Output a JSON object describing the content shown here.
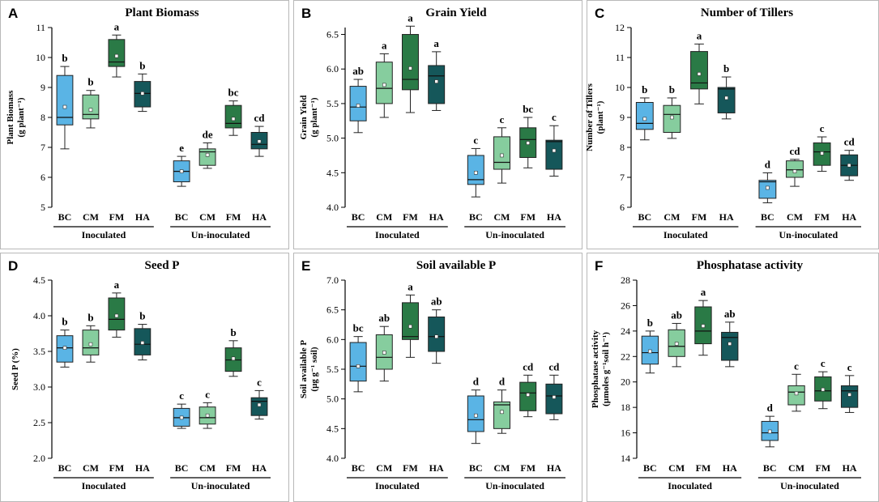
{
  "figure": {
    "colors": {
      "BC": "#5ab4e5",
      "CM": "#86cd9e",
      "FM": "#2a7a46",
      "HA": "#15575a",
      "mean_marker": "#ffffff",
      "border": "#b8b8b8"
    }
  },
  "chart_data": [
    {
      "type": "box",
      "letter": "A",
      "title": "Plant Biomass",
      "ylabel": "Plant Biomass",
      "ylabel_unit": "(g plant⁻¹)",
      "ylim": [
        5,
        11
      ],
      "yticks": [
        5,
        6,
        7,
        8,
        9,
        10,
        11
      ],
      "ytick_labels": [
        "5",
        "6",
        "7",
        "8",
        "9",
        "10",
        "11"
      ],
      "groups": [
        "Inoculated",
        "Un-inoculated"
      ],
      "categories": [
        "BC",
        "CM",
        "FM",
        "HA"
      ],
      "boxes": [
        {
          "group": "Inoculated",
          "cat": "BC",
          "min": 6.95,
          "q1": 7.75,
          "median": 8.0,
          "q3": 9.4,
          "max": 9.7,
          "mean": 8.35,
          "sig": "b"
        },
        {
          "group": "Inoculated",
          "cat": "CM",
          "min": 7.65,
          "q1": 7.95,
          "median": 8.1,
          "q3": 8.75,
          "max": 8.9,
          "mean": 8.25,
          "sig": "b"
        },
        {
          "group": "Inoculated",
          "cat": "FM",
          "min": 9.35,
          "q1": 9.7,
          "median": 9.85,
          "q3": 10.6,
          "max": 10.75,
          "mean": 10.05,
          "sig": "a"
        },
        {
          "group": "Inoculated",
          "cat": "HA",
          "min": 8.2,
          "q1": 8.35,
          "median": 8.8,
          "q3": 9.2,
          "max": 9.45,
          "mean": 8.8,
          "sig": "b"
        },
        {
          "group": "Un-inoculated",
          "cat": "BC",
          "min": 5.7,
          "q1": 5.85,
          "median": 6.2,
          "q3": 6.55,
          "max": 6.7,
          "mean": 6.2,
          "sig": "e"
        },
        {
          "group": "Un-inoculated",
          "cat": "CM",
          "min": 6.3,
          "q1": 6.4,
          "median": 6.85,
          "q3": 6.95,
          "max": 7.15,
          "mean": 6.75,
          "sig": "de"
        },
        {
          "group": "Un-inoculated",
          "cat": "FM",
          "min": 7.4,
          "q1": 7.65,
          "median": 7.8,
          "q3": 8.4,
          "max": 8.55,
          "mean": 7.95,
          "sig": "bc"
        },
        {
          "group": "Un-inoculated",
          "cat": "HA",
          "min": 6.7,
          "q1": 6.95,
          "median": 7.1,
          "q3": 7.5,
          "max": 7.7,
          "mean": 7.2,
          "sig": "cd"
        }
      ]
    },
    {
      "type": "box",
      "letter": "B",
      "title": "Grain Yield",
      "ylabel": "Grain Yield",
      "ylabel_unit": "(g plant⁻¹)",
      "ylim": [
        4.0,
        6.6
      ],
      "yticks": [
        4.0,
        4.5,
        5.0,
        5.5,
        6.0,
        6.5
      ],
      "ytick_labels": [
        "4.0",
        "4.5",
        "5.0",
        "5.5",
        "6.0",
        "6.5"
      ],
      "groups": [
        "Inoculated",
        "Un-inoculated"
      ],
      "categories": [
        "BC",
        "CM",
        "FM",
        "HA"
      ],
      "boxes": [
        {
          "group": "Inoculated",
          "cat": "BC",
          "min": 5.08,
          "q1": 5.25,
          "median": 5.45,
          "q3": 5.75,
          "max": 5.85,
          "mean": 5.47,
          "sig": "ab"
        },
        {
          "group": "Inoculated",
          "cat": "CM",
          "min": 5.3,
          "q1": 5.5,
          "median": 5.72,
          "q3": 6.1,
          "max": 6.22,
          "mean": 5.77,
          "sig": "a"
        },
        {
          "group": "Inoculated",
          "cat": "FM",
          "min": 5.37,
          "q1": 5.7,
          "median": 5.85,
          "q3": 6.5,
          "max": 6.62,
          "mean": 6.01,
          "sig": "a"
        },
        {
          "group": "Inoculated",
          "cat": "HA",
          "min": 5.4,
          "q1": 5.5,
          "median": 5.9,
          "q3": 6.05,
          "max": 6.25,
          "mean": 5.82,
          "sig": "a"
        },
        {
          "group": "Un-inoculated",
          "cat": "BC",
          "min": 4.15,
          "q1": 4.33,
          "median": 4.4,
          "q3": 4.75,
          "max": 4.85,
          "mean": 4.5,
          "sig": "c"
        },
        {
          "group": "Un-inoculated",
          "cat": "CM",
          "min": 4.35,
          "q1": 4.55,
          "median": 4.65,
          "q3": 5.02,
          "max": 5.15,
          "mean": 4.75,
          "sig": "c"
        },
        {
          "group": "Un-inoculated",
          "cat": "FM",
          "min": 4.57,
          "q1": 4.72,
          "median": 4.98,
          "q3": 5.15,
          "max": 5.3,
          "mean": 4.93,
          "sig": "bc"
        },
        {
          "group": "Un-inoculated",
          "cat": "HA",
          "min": 4.45,
          "q1": 4.55,
          "median": 4.95,
          "q3": 4.97,
          "max": 5.18,
          "mean": 4.82,
          "sig": "c"
        }
      ]
    },
    {
      "type": "box",
      "letter": "C",
      "title": "Number of Tillers",
      "ylabel": "Number of Tillers",
      "ylabel_unit": "(plant⁻¹)",
      "ylim": [
        6,
        12
      ],
      "yticks": [
        6,
        7,
        8,
        9,
        10,
        11,
        12
      ],
      "ytick_labels": [
        "6",
        "7",
        "8",
        "9",
        "10",
        "11",
        "12"
      ],
      "groups": [
        "Inoculated",
        "Un-inoculated"
      ],
      "categories": [
        "BC",
        "CM",
        "FM",
        "HA"
      ],
      "boxes": [
        {
          "group": "Inoculated",
          "cat": "BC",
          "min": 8.25,
          "q1": 8.6,
          "median": 8.8,
          "q3": 9.5,
          "max": 9.65,
          "mean": 8.95,
          "sig": "b"
        },
        {
          "group": "Inoculated",
          "cat": "CM",
          "min": 8.3,
          "q1": 8.5,
          "median": 9.1,
          "q3": 9.4,
          "max": 9.65,
          "mean": 9.0,
          "sig": "b"
        },
        {
          "group": "Inoculated",
          "cat": "FM",
          "min": 9.45,
          "q1": 9.95,
          "median": 10.15,
          "q3": 11.2,
          "max": 11.45,
          "mean": 10.45,
          "sig": "a"
        },
        {
          "group": "Inoculated",
          "cat": "HA",
          "min": 8.95,
          "q1": 9.15,
          "median": 9.95,
          "q3": 10.0,
          "max": 10.35,
          "mean": 9.65,
          "sig": "b"
        },
        {
          "group": "Un-inoculated",
          "cat": "BC",
          "min": 6.15,
          "q1": 6.3,
          "median": 6.85,
          "q3": 6.9,
          "max": 7.15,
          "mean": 6.65,
          "sig": "d"
        },
        {
          "group": "Un-inoculated",
          "cat": "CM",
          "min": 6.7,
          "q1": 7.0,
          "median": 7.25,
          "q3": 7.55,
          "max": 7.6,
          "mean": 7.2,
          "sig": "cd"
        },
        {
          "group": "Un-inoculated",
          "cat": "FM",
          "min": 7.2,
          "q1": 7.4,
          "median": 7.85,
          "q3": 8.15,
          "max": 8.35,
          "mean": 7.8,
          "sig": "c"
        },
        {
          "group": "Un-inoculated",
          "cat": "HA",
          "min": 6.9,
          "q1": 7.05,
          "median": 7.4,
          "q3": 7.75,
          "max": 7.9,
          "mean": 7.4,
          "sig": "cd"
        }
      ]
    },
    {
      "type": "box",
      "letter": "D",
      "title": "Seed P",
      "ylabel": "Seed P (%)",
      "ylabel_unit": "",
      "ylim": [
        2.0,
        4.5
      ],
      "yticks": [
        2.0,
        2.5,
        3.0,
        3.5,
        4.0,
        4.5
      ],
      "ytick_labels": [
        "2.0",
        "2.5",
        "3.0",
        "3.5",
        "4.0",
        "4.5"
      ],
      "groups": [
        "Inoculated",
        "Un-inoculated"
      ],
      "categories": [
        "BC",
        "CM",
        "FM",
        "HA"
      ],
      "boxes": [
        {
          "group": "Inoculated",
          "cat": "BC",
          "min": 3.28,
          "q1": 3.35,
          "median": 3.55,
          "q3": 3.72,
          "max": 3.8,
          "mean": 3.55,
          "sig": "b"
        },
        {
          "group": "Inoculated",
          "cat": "CM",
          "min": 3.35,
          "q1": 3.45,
          "median": 3.55,
          "q3": 3.8,
          "max": 3.86,
          "mean": 3.6,
          "sig": "b"
        },
        {
          "group": "Inoculated",
          "cat": "FM",
          "min": 3.7,
          "q1": 3.8,
          "median": 3.95,
          "q3": 4.25,
          "max": 4.32,
          "mean": 4.0,
          "sig": "a"
        },
        {
          "group": "Inoculated",
          "cat": "HA",
          "min": 3.38,
          "q1": 3.45,
          "median": 3.6,
          "q3": 3.82,
          "max": 3.88,
          "mean": 3.62,
          "sig": "b"
        },
        {
          "group": "Un-inoculated",
          "cat": "BC",
          "min": 2.42,
          "q1": 2.45,
          "median": 2.57,
          "q3": 2.7,
          "max": 2.76,
          "mean": 2.57,
          "sig": "c"
        },
        {
          "group": "Un-inoculated",
          "cat": "CM",
          "min": 2.42,
          "q1": 2.48,
          "median": 2.57,
          "q3": 2.72,
          "max": 2.78,
          "mean": 2.6,
          "sig": "c"
        },
        {
          "group": "Un-inoculated",
          "cat": "FM",
          "min": 3.15,
          "q1": 3.22,
          "median": 3.38,
          "q3": 3.55,
          "max": 3.65,
          "mean": 3.4,
          "sig": "b"
        },
        {
          "group": "Un-inoculated",
          "cat": "HA",
          "min": 2.55,
          "q1": 2.6,
          "median": 2.8,
          "q3": 2.85,
          "max": 2.95,
          "mean": 2.75,
          "sig": "c"
        }
      ]
    },
    {
      "type": "box",
      "letter": "E",
      "title": "Soil available P",
      "ylabel": "Soil available P",
      "ylabel_unit": "(µg g⁻¹ soil)",
      "ylim": [
        4.0,
        7.0
      ],
      "yticks": [
        4.0,
        4.5,
        5.0,
        5.5,
        6.0,
        6.5,
        7.0
      ],
      "ytick_labels": [
        "4.0",
        "4.5",
        "5.0",
        "5.5",
        "6.0",
        "6.5",
        "7.0"
      ],
      "groups": [
        "Inoculated",
        "Un-inoculated"
      ],
      "categories": [
        "BC",
        "CM",
        "FM",
        "HA"
      ],
      "boxes": [
        {
          "group": "Inoculated",
          "cat": "BC",
          "min": 5.12,
          "q1": 5.3,
          "median": 5.55,
          "q3": 5.95,
          "max": 6.05,
          "mean": 5.55,
          "sig": "bc"
        },
        {
          "group": "Inoculated",
          "cat": "CM",
          "min": 5.3,
          "q1": 5.5,
          "median": 5.7,
          "q3": 6.08,
          "max": 6.22,
          "mean": 5.78,
          "sig": "ab"
        },
        {
          "group": "Inoculated",
          "cat": "FM",
          "min": 5.7,
          "q1": 6.0,
          "median": 6.05,
          "q3": 6.62,
          "max": 6.75,
          "mean": 6.22,
          "sig": "a"
        },
        {
          "group": "Inoculated",
          "cat": "HA",
          "min": 5.6,
          "q1": 5.8,
          "median": 6.05,
          "q3": 6.38,
          "max": 6.5,
          "mean": 6.05,
          "sig": "ab"
        },
        {
          "group": "Un-inoculated",
          "cat": "BC",
          "min": 4.25,
          "q1": 4.45,
          "median": 4.65,
          "q3": 5.05,
          "max": 5.15,
          "mean": 4.72,
          "sig": "d"
        },
        {
          "group": "Un-inoculated",
          "cat": "CM",
          "min": 4.42,
          "q1": 4.5,
          "median": 4.9,
          "q3": 4.95,
          "max": 5.15,
          "mean": 4.78,
          "sig": "d"
        },
        {
          "group": "Un-inoculated",
          "cat": "FM",
          "min": 4.7,
          "q1": 4.8,
          "median": 5.1,
          "q3": 5.28,
          "max": 5.4,
          "mean": 5.07,
          "sig": "cd"
        },
        {
          "group": "Un-inoculated",
          "cat": "HA",
          "min": 4.65,
          "q1": 4.75,
          "median": 5.05,
          "q3": 5.25,
          "max": 5.4,
          "mean": 5.03,
          "sig": "cd"
        }
      ]
    },
    {
      "type": "box",
      "letter": "F",
      "title": "Phosphatase activity",
      "ylabel": "Phosphatase activity",
      "ylabel_unit": "(µmoles g⁻¹soil h⁻¹)",
      "ylim": [
        14,
        28
      ],
      "yticks": [
        14,
        16,
        18,
        20,
        22,
        24,
        26,
        28
      ],
      "ytick_labels": [
        "14",
        "16",
        "18",
        "20",
        "22",
        "24",
        "26",
        "28"
      ],
      "groups": [
        "Inoculated",
        "Un-inoculated"
      ],
      "categories": [
        "BC",
        "CM",
        "FM",
        "HA"
      ],
      "boxes": [
        {
          "group": "Inoculated",
          "cat": "BC",
          "min": 20.7,
          "q1": 21.4,
          "median": 22.3,
          "q3": 23.6,
          "max": 24.0,
          "mean": 22.4,
          "sig": "b"
        },
        {
          "group": "Inoculated",
          "cat": "CM",
          "min": 21.2,
          "q1": 22.0,
          "median": 22.8,
          "q3": 24.1,
          "max": 24.6,
          "mean": 23.0,
          "sig": "ab"
        },
        {
          "group": "Inoculated",
          "cat": "FM",
          "min": 22.1,
          "q1": 23.0,
          "median": 24.0,
          "q3": 25.9,
          "max": 26.4,
          "mean": 24.4,
          "sig": "a"
        },
        {
          "group": "Inoculated",
          "cat": "HA",
          "min": 21.2,
          "q1": 21.7,
          "median": 23.5,
          "q3": 23.9,
          "max": 24.7,
          "mean": 23.0,
          "sig": "ab"
        },
        {
          "group": "Un-inoculated",
          "cat": "BC",
          "min": 14.9,
          "q1": 15.4,
          "median": 16.0,
          "q3": 16.9,
          "max": 17.3,
          "mean": 16.1,
          "sig": "d"
        },
        {
          "group": "Un-inoculated",
          "cat": "CM",
          "min": 17.7,
          "q1": 18.2,
          "median": 19.2,
          "q3": 19.7,
          "max": 20.6,
          "mean": 19.1,
          "sig": "c"
        },
        {
          "group": "Un-inoculated",
          "cat": "FM",
          "min": 17.9,
          "q1": 18.5,
          "median": 19.3,
          "q3": 20.4,
          "max": 20.8,
          "mean": 19.4,
          "sig": "c"
        },
        {
          "group": "Un-inoculated",
          "cat": "HA",
          "min": 17.6,
          "q1": 18.0,
          "median": 19.3,
          "q3": 19.7,
          "max": 20.5,
          "mean": 19.0,
          "sig": "c"
        }
      ]
    }
  ]
}
